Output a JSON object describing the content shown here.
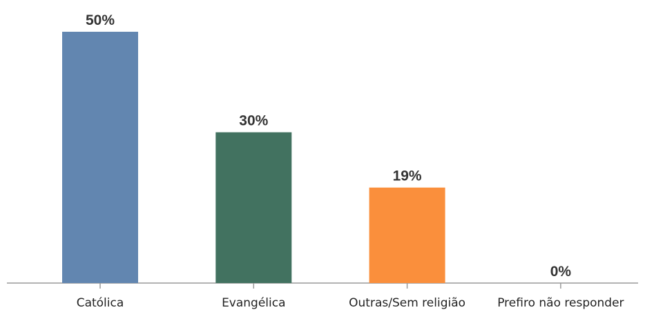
{
  "chart_data": {
    "type": "bar",
    "categories": [
      "Católica",
      "Evangélica",
      "Outras/Sem religião",
      "Prefiro não responder"
    ],
    "values": [
      50,
      30,
      19,
      0
    ],
    "value_labels": [
      "50%",
      "30%",
      "19%",
      "0%"
    ],
    "colors": [
      "#6286b0",
      "#427260",
      "#fa8f3c",
      "#999999"
    ]
  }
}
